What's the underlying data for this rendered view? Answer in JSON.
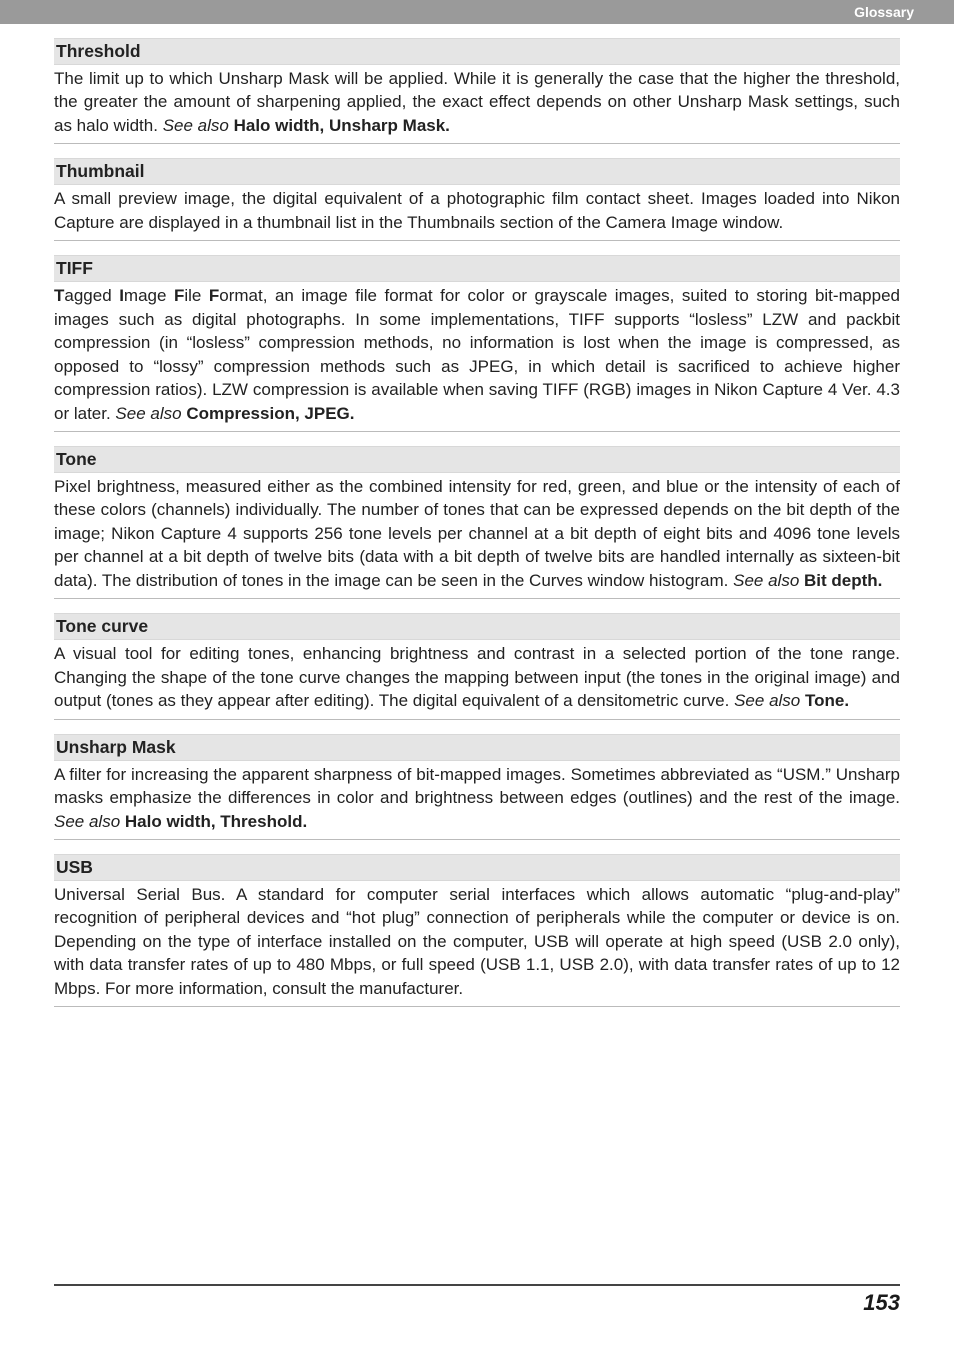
{
  "banner_label": "Glossary",
  "page_number": "153",
  "entries": [
    {
      "term": "Threshold",
      "body_html": "The limit up to which Unsharp Mask will be applied. While it is generally the case that the higher the threshold, the greater the amount of sharpening applied, the exact effect depends on other Unsharp Mask settings, such as halo width. <span class=\"see-also\">See also</span> <span class=\"ref\">Halo width, Unsharp Mask.</span>"
    },
    {
      "term": "Thumbnail",
      "body_html": "A small preview image, the digital equivalent of a photographic film contact sheet. Images loaded into Nikon Capture are displayed in a thumbnail list in the Thumbnails section of the Camera Image window."
    },
    {
      "term": "TIFF",
      "body_html": "<span class=\"acronym-b\">T</span>agged <span class=\"acronym-b\">I</span>mage <span class=\"acronym-b\">F</span>ile <span class=\"acronym-b\">F</span>ormat, an image file format for color or grayscale images, suited to storing bit-mapped images such as digital photographs. In some implementations, TIFF supports “losless” LZW and packbit compression (in “losless” compression methods, no information is lost when the image is compressed, as opposed to “lossy” compression methods such as JPEG, in which detail is sacrificed to achieve higher compression ratios). LZW compression is available when saving TIFF (RGB) images in Nikon Capture 4 Ver. 4.3 or later. <span class=\"see-also\">See also</span> <span class=\"ref\">Compression, JPEG.</span>"
    },
    {
      "term": "Tone",
      "body_html": "Pixel brightness, measured either as the combined intensity for red, green, and blue or the intensity of each of these colors (channels) individually. The number of tones that can be expressed depends on the bit depth of the image; Nikon Capture 4 supports 256 tone levels per channel at a bit depth of eight bits and 4096 tone levels per channel at a bit depth of twelve bits (data with a bit depth of twelve bits are handled internally as sixteen-bit data). The distribution of tones in the image can be seen in the Curves window histogram. <span class=\"see-also\">See also</span> <span class=\"ref\">Bit depth.</span>"
    },
    {
      "term": "Tone curve",
      "body_html": "A visual tool for editing tones, enhancing brightness and contrast in a selected portion of the tone range. Changing the shape of the tone curve changes the mapping between input (the tones in the original image) and output (tones as they appear after editing). The digital equivalent of a densitometric curve. <span class=\"see-also\">See also</span> <span class=\"ref\">Tone.</span>"
    },
    {
      "term": "Unsharp Mask",
      "body_html": "A filter for increasing the apparent sharpness of bit-mapped images. Sometimes abbreviated as “USM.” Unsharp masks emphasize the differences in color and brightness between edges (outlines) and the rest of the image. <span class=\"see-also\">See also</span> <span class=\"ref\">Halo width, Threshold.</span>"
    },
    {
      "term": "USB",
      "body_html": "Universal Serial Bus. A standard for computer serial interfaces which allows automatic “plug-and-play” recognition of peripheral devices and “hot plug” connection of peripherals while the computer or device is on. Depending on the type of interface installed on the computer, USB will operate at high speed (USB 2.0 only), with data transfer rates of up to 480 Mbps, or full speed (USB 1.1, USB 2.0), with data transfer rates of up to 12 Mbps. For more information, consult the manufacturer."
    }
  ]
}
